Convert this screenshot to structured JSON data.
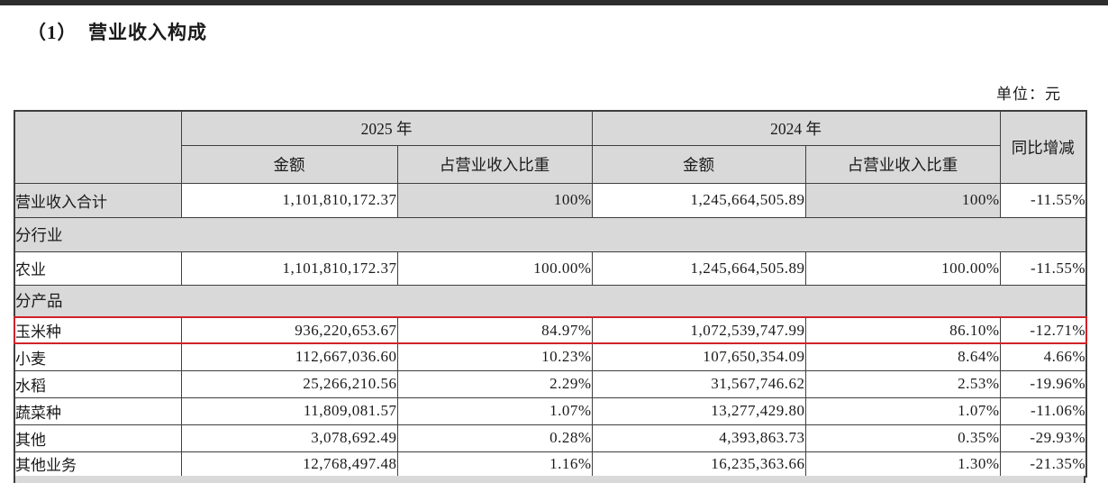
{
  "page": {
    "title": "（1）  营业收入构成",
    "unit_label": "单位：元"
  },
  "table": {
    "header": {
      "year_2025": "2025 年",
      "year_2024": "2024 年",
      "amount_2025": "金额",
      "share_2025": "占营业收入比重",
      "amount_2024": "金额",
      "share_2024": "占营业收入比重",
      "yoy": "同比增减"
    },
    "rows": [
      {
        "type": "data",
        "label": "营业收入合计",
        "a2025": "1,101,810,172.37",
        "s2025": "100%",
        "a2024": "1,245,664,505.89",
        "s2024": "100%",
        "yoy": "-11.55%",
        "shaded": true
      },
      {
        "type": "section",
        "label": "分行业"
      },
      {
        "type": "data",
        "label": "农业",
        "a2025": "1,101,810,172.37",
        "s2025": "100.00%",
        "a2024": "1,245,664,505.89",
        "s2024": "100.00%",
        "yoy": "-11.55%"
      },
      {
        "type": "section",
        "label": "分产品"
      },
      {
        "type": "data",
        "label": "玉米种",
        "a2025": "936,220,653.67",
        "s2025": "84.97%",
        "a2024": "1,072,539,747.99",
        "s2024": "86.10%",
        "yoy": "-12.71%",
        "highlighted": true
      },
      {
        "type": "data",
        "label": "小麦",
        "a2025": "112,667,036.60",
        "s2025": "10.23%",
        "a2024": "107,650,354.09",
        "s2024": "8.64%",
        "yoy": "4.66%"
      },
      {
        "type": "data",
        "label": "水稻",
        "a2025": "25,266,210.56",
        "s2025": "2.29%",
        "a2024": "31,567,746.62",
        "s2024": "2.53%",
        "yoy": "-19.96%"
      },
      {
        "type": "data",
        "label": "蔬菜种",
        "a2025": "11,809,081.57",
        "s2025": "1.07%",
        "a2024": "13,277,429.80",
        "s2024": "1.07%",
        "yoy": "-11.06%"
      },
      {
        "type": "data",
        "label": "其他",
        "a2025": "3,078,692.49",
        "s2025": "0.28%",
        "a2024": "4,393,863.73",
        "s2024": "0.35%",
        "yoy": "-29.93%"
      },
      {
        "type": "data",
        "label": "其他业务",
        "a2025": "12,768,497.48",
        "s2025": "1.16%",
        "a2024": "16,235,363.66",
        "s2024": "1.30%",
        "yoy": "-21.35%"
      }
    ],
    "colors": {
      "header_gray": "#d9d9d9",
      "border": "#3f3f3f",
      "highlight_red": "#cf2328"
    }
  }
}
